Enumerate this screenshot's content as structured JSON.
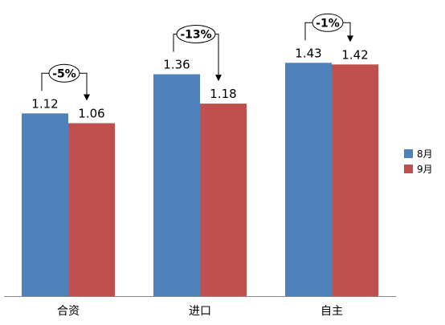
{
  "chart_data": {
    "type": "bar",
    "categories": [
      "合资",
      "进口",
      "自主"
    ],
    "series": [
      {
        "name": "8月",
        "values": [
          1.12,
          1.36,
          1.43
        ],
        "color": "#4F81BD"
      },
      {
        "name": "9月",
        "values": [
          1.06,
          1.18,
          1.42
        ],
        "color": "#C0504D"
      }
    ],
    "value_labels": [
      [
        "1.12",
        "1.36",
        "1.43"
      ],
      [
        "1.06",
        "1.18",
        "1.42"
      ]
    ],
    "changes": [
      "-5%",
      "-13%",
      "-1%"
    ],
    "title": "",
    "xlabel": "",
    "ylabel": "",
    "ylim": [
      0,
      1.5
    ],
    "grid": false,
    "legend_position": "right"
  }
}
